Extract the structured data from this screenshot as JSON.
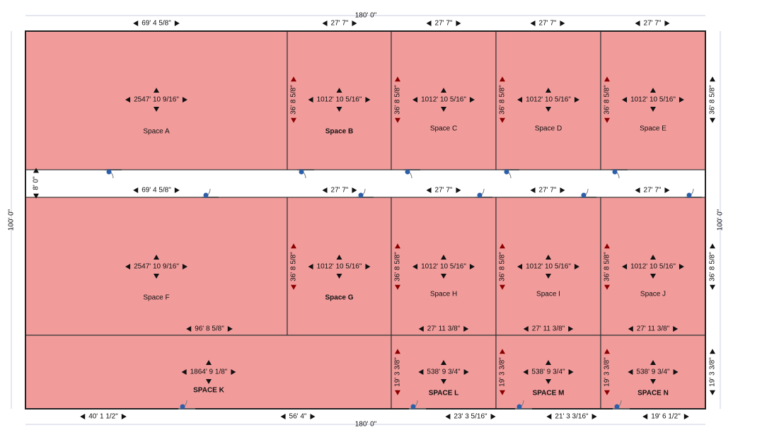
{
  "overall": {
    "width_top": "180' 0\"",
    "width_bottom": "180' 0\"",
    "height_left": "100' 0\"",
    "height_right": "100' 0\""
  },
  "top_widths": [
    "69' 4 5/8\"",
    "27' 7\"",
    "27' 7\"",
    "27' 7\"",
    "27' 7\""
  ],
  "corridor": {
    "height": "8' 0\"",
    "widths": [
      "69' 4 5/8\"",
      "27' 7\"",
      "27' 7\"",
      "27' 7\"",
      "27' 7\""
    ]
  },
  "right_heights": [
    "36' 8 5/8\"",
    "36' 8 5/8\"",
    "19' 3 3/8\""
  ],
  "bottom_widths": [
    "40' 1 1/2\"",
    "56' 4\"",
    "23' 3 5/16\"",
    "21' 3 3/16\"",
    "19' 6 1/2\""
  ],
  "spaces": [
    {
      "name": "Space A",
      "area": "2547' 10 9/16\""
    },
    {
      "name": "Space B",
      "area": "1012' 10 5/16\"",
      "height": "36' 8 5/8\""
    },
    {
      "name": "Space C",
      "area": "1012' 10 5/16\"",
      "height": "36' 8 5/8\""
    },
    {
      "name": "Space D",
      "area": "1012' 10 5/16\"",
      "height": "36' 8 5/8\""
    },
    {
      "name": "Space E",
      "area": "1012' 10 5/16\"",
      "height": "36' 8 5/8\""
    },
    {
      "name": "Space F",
      "area": "2547' 10 9/16\"",
      "width": "96' 8 5/8\""
    },
    {
      "name": "Space G",
      "area": "1012' 10 5/16\"",
      "height": "36' 8 5/8\""
    },
    {
      "name": "Space H",
      "area": "1012' 10 5/16\"",
      "height": "36' 8 5/8\"",
      "width": "27' 11 3/8\""
    },
    {
      "name": "Space I",
      "area": "1012' 10 5/16\"",
      "height": "36' 8 5/8\"",
      "width": "27' 11 3/8\""
    },
    {
      "name": "Space J",
      "area": "1012' 10 5/16\"",
      "height": "36' 8 5/8\"",
      "width": "27' 11 3/8\""
    },
    {
      "name": "SPACE K",
      "area": "1864' 9 1/8\""
    },
    {
      "name": "SPACE L",
      "area": "538' 9 3/4\"",
      "height": "19' 3 3/8\""
    },
    {
      "name": "SPACE M",
      "area": "538' 9 3/4\"",
      "height": "19' 3 3/8\""
    },
    {
      "name": "SPACE N",
      "area": "538' 9 3/4\"",
      "height": "19' 3 3/8\""
    }
  ]
}
